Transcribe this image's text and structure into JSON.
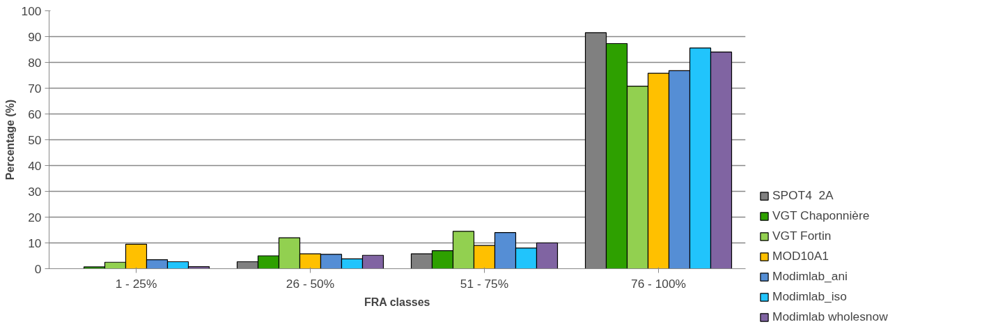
{
  "chart_data": {
    "type": "bar",
    "xlabel": "FRA classes",
    "ylabel": "Percentage (%)",
    "categories": [
      "1 - 25%",
      "26 - 50%",
      "51 - 75%",
      "76 - 100%"
    ],
    "series": [
      {
        "name": "SPOT4  2A",
        "color": "#808080",
        "values": [
          null,
          2.7,
          5.8,
          91.5
        ]
      },
      {
        "name": "VGT Chaponnière",
        "color": "#2ea000",
        "values": [
          0.7,
          5.0,
          7.0,
          87.3
        ]
      },
      {
        "name": "VGT Fortin",
        "color": "#92d050",
        "values": [
          2.5,
          12.0,
          14.5,
          70.8
        ]
      },
      {
        "name": "MOD10A1",
        "color": "#ffc000",
        "values": [
          9.5,
          5.8,
          9.0,
          75.8
        ]
      },
      {
        "name": "Modimlab_ani",
        "color": "#558ed5",
        "values": [
          3.5,
          5.6,
          14.0,
          76.8
        ]
      },
      {
        "name": "Modimlab_iso",
        "color": "#21c4fc",
        "values": [
          2.7,
          3.8,
          8.0,
          85.6
        ]
      },
      {
        "name": "Modimlab wholesnow",
        "color": "#8064a2",
        "values": [
          0.8,
          5.2,
          10.0,
          84.0
        ]
      }
    ],
    "ylim": [
      0,
      100
    ],
    "yticks": [
      0,
      10,
      20,
      30,
      40,
      50,
      60,
      70,
      80,
      90,
      100
    ],
    "grid": "y",
    "legend": "right"
  }
}
